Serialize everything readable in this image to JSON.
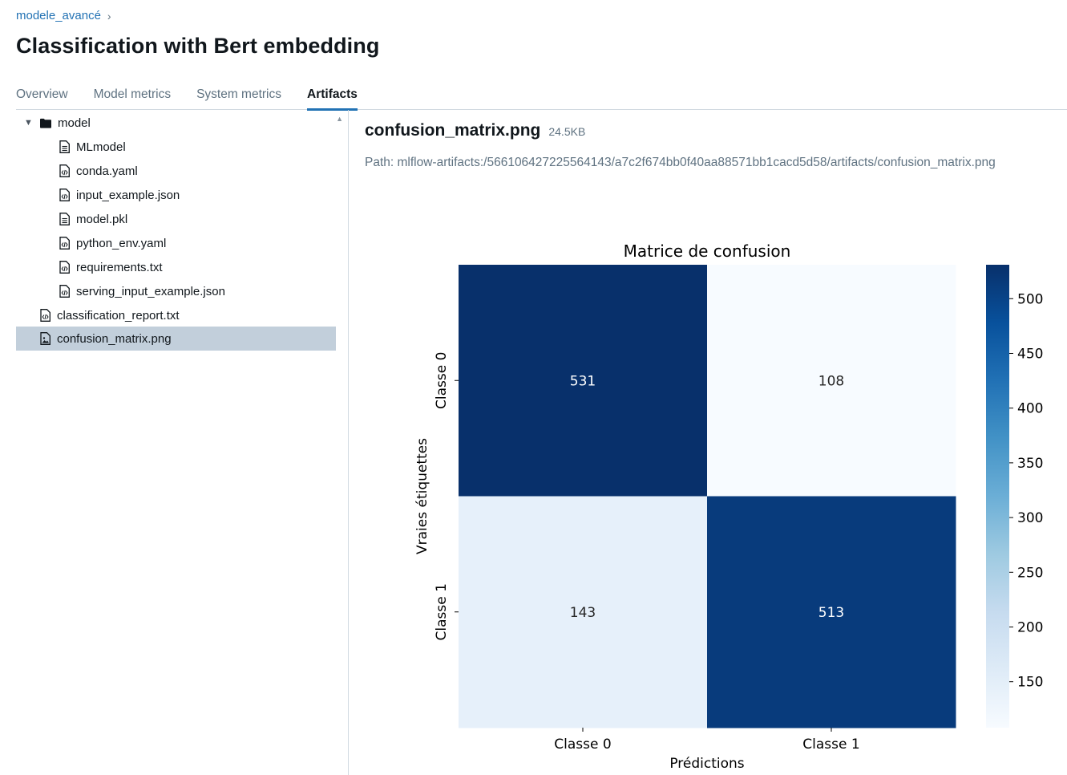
{
  "breadcrumb": {
    "experiment": "modele_avancé",
    "separator": "›"
  },
  "page": {
    "title": "Classification with Bert embedding"
  },
  "tabs": [
    {
      "label": "Overview",
      "active": false
    },
    {
      "label": "Model metrics",
      "active": false
    },
    {
      "label": "System metrics",
      "active": false
    },
    {
      "label": "Artifacts",
      "active": true
    }
  ],
  "tree": [
    {
      "label": "model",
      "type": "folder",
      "expanded": true,
      "icon": "folder-icon"
    },
    {
      "label": "MLmodel",
      "type": "file",
      "icon": "file-icon"
    },
    {
      "label": "conda.yaml",
      "type": "file",
      "icon": "code-file-icon"
    },
    {
      "label": "input_example.json",
      "type": "file",
      "icon": "code-file-icon"
    },
    {
      "label": "model.pkl",
      "type": "file",
      "icon": "file-icon"
    },
    {
      "label": "python_env.yaml",
      "type": "file",
      "icon": "code-file-icon"
    },
    {
      "label": "requirements.txt",
      "type": "file",
      "icon": "code-file-icon"
    },
    {
      "label": "serving_input_example.json",
      "type": "file",
      "icon": "code-file-icon"
    },
    {
      "label": "classification_report.txt",
      "type": "file",
      "icon": "code-file-icon"
    },
    {
      "label": "confusion_matrix.png",
      "type": "file",
      "icon": "image-file-icon",
      "selected": true
    }
  ],
  "artifact": {
    "name": "confusion_matrix.png",
    "size": "24.5KB",
    "path": "Path: mlflow-artifacts:/566106427225564143/a7c2f674bb0f40aa88571bb1cacd5d58/artifacts/confusion_matrix.png"
  },
  "chart_data": {
    "type": "heatmap",
    "title": "Matrice de confusion",
    "xlabel": "Prédictions",
    "ylabel": "Vraies étiquettes",
    "x_categories": [
      "Classe 0",
      "Classe 1"
    ],
    "y_categories": [
      "Classe 0",
      "Classe 1"
    ],
    "values": [
      [
        531,
        108
      ],
      [
        143,
        513
      ]
    ],
    "colorbar": {
      "min": 108,
      "max": 531,
      "ticks": [
        150,
        200,
        250,
        300,
        350,
        400,
        450,
        500
      ]
    },
    "colormap": "Blues",
    "colors": {
      "low": "#f7fbff",
      "high": "#08306b"
    }
  }
}
